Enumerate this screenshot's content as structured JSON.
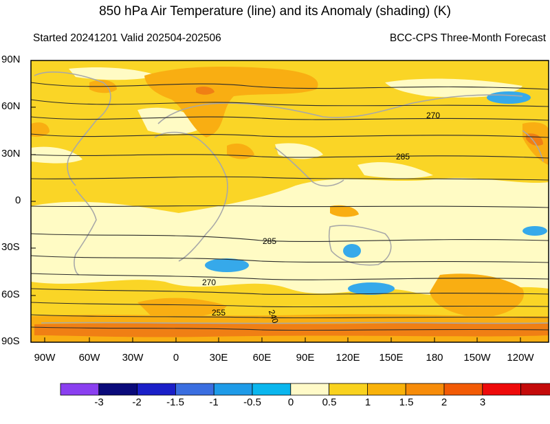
{
  "title": "850 hPa Air Temperature (line) and its Anomaly (shading) (K)",
  "subtitle_left": "Started 20241201  Valid 202504-202506",
  "subtitle_right": "BCC-CPS Three-Month Forecast",
  "map": {
    "lat_labels": [
      "90N",
      "60N",
      "30N",
      "0",
      "30S",
      "60S",
      "90S"
    ],
    "lon_labels": [
      "90W",
      "60W",
      "30W",
      "0",
      "30E",
      "60E",
      "90E",
      "120E",
      "150E",
      "180",
      "150W",
      "120W"
    ],
    "contour_labels": [
      "270",
      "285",
      "285",
      "270",
      "255",
      "240"
    ]
  },
  "colorbar": {
    "colors": [
      "#8a3ff0",
      "#0a0a7a",
      "#1a1fc8",
      "#3a6ee0",
      "#1e9be8",
      "#0ab6ee",
      "#fffac8",
      "#f9d21e",
      "#f9b20a",
      "#f78c09",
      "#f25a05",
      "#ee0a0a",
      "#c40a0a"
    ],
    "labels": [
      "-3",
      "-2",
      "-1.5",
      "-1",
      "-0.5",
      "0",
      "0.5",
      "1",
      "1.5",
      "2",
      "3"
    ]
  },
  "colors": {
    "pale": "#fffbc4",
    "yellow": "#fad526",
    "orange": "#f9ae12",
    "deep_orange": "#f07f14",
    "blue": "#36a9ea",
    "land": "#a8a8a8",
    "contour": "#2a2a2a"
  }
}
